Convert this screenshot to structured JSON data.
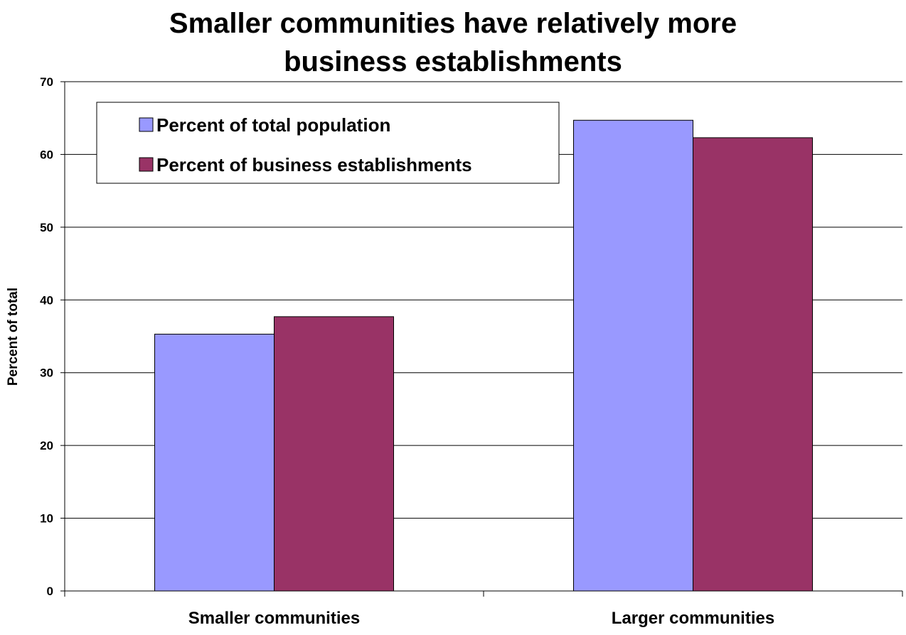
{
  "chart_data": {
    "type": "bar",
    "title_lines": [
      "Smaller communities have relatively more",
      "business establishments"
    ],
    "xlabel": "",
    "ylabel": "Percent of total",
    "ylim": [
      0,
      70
    ],
    "yticks": [
      0,
      10,
      20,
      30,
      40,
      50,
      60,
      70
    ],
    "grid": true,
    "legend_position": "top-left",
    "categories": [
      "Smaller communities",
      "Larger communities"
    ],
    "series": [
      {
        "name": "Percent of total population",
        "color": "#9999ff",
        "values": [
          35.3,
          64.7
        ]
      },
      {
        "name": "Percent of business establishments",
        "color": "#993366",
        "values": [
          37.7,
          62.3
        ]
      }
    ]
  }
}
